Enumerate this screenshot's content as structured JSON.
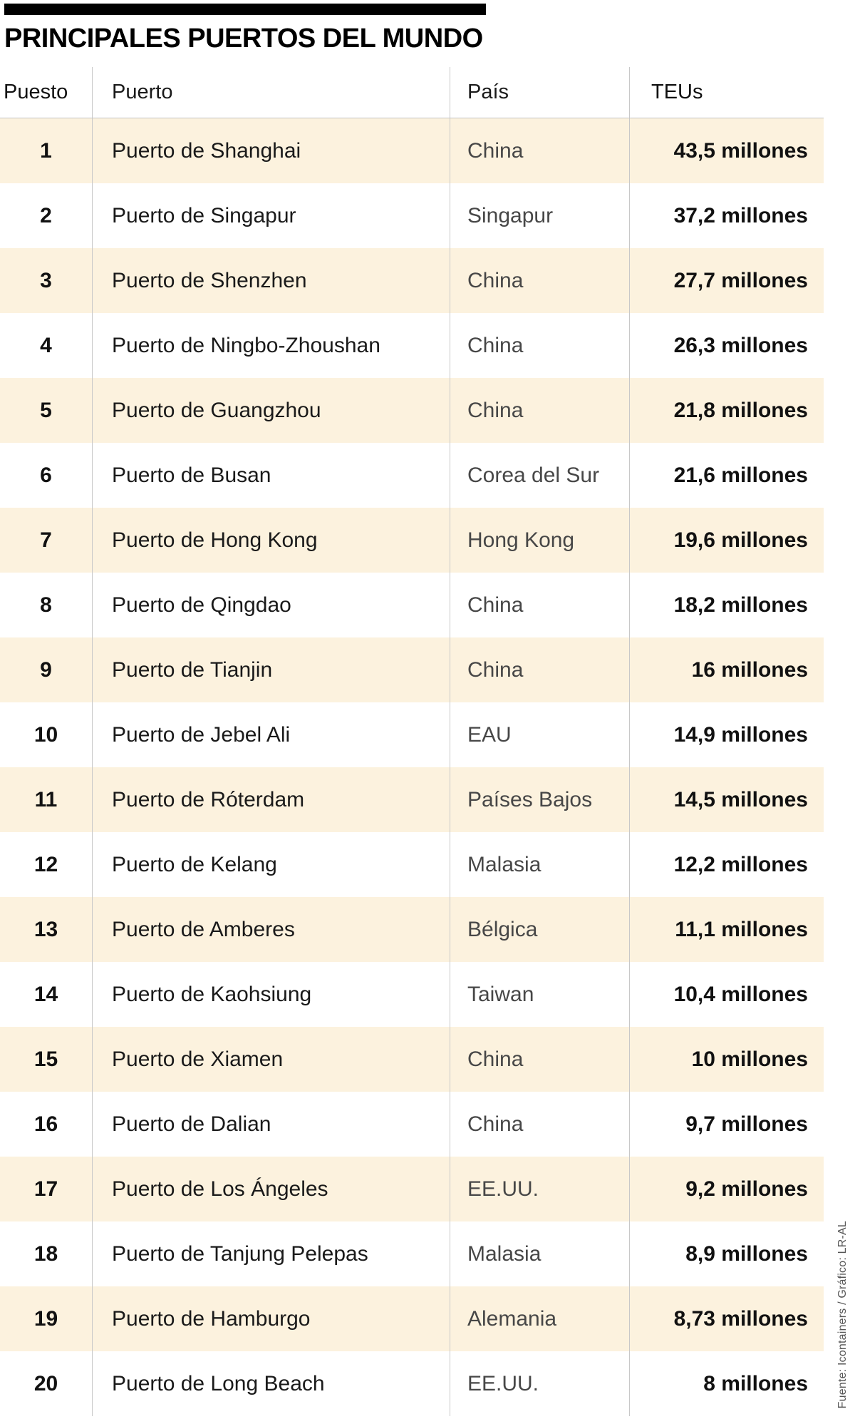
{
  "source_credit": "Fuente: Icontainers / Gráfico: LR-AL",
  "colors": {
    "stripe": "#fcf2de",
    "accent_bar": "#000000",
    "divider": "#c8c8c8"
  },
  "chart_data": {
    "type": "table",
    "title": "PRINCIPALES PUERTOS DEL MUNDO",
    "columns": [
      "Puesto",
      "Puerto",
      "País",
      "TEUs"
    ],
    "rows": [
      [
        "1",
        "Puerto de Shanghai",
        "China",
        "43,5 millones"
      ],
      [
        "2",
        "Puerto de Singapur",
        "Singapur",
        "37,2 millones"
      ],
      [
        "3",
        "Puerto de Shenzhen",
        "China",
        "27,7 millones"
      ],
      [
        "4",
        "Puerto de Ningbo-Zhoushan",
        "China",
        "26,3 millones"
      ],
      [
        "5",
        "Puerto de Guangzhou",
        "China",
        "21,8 millones"
      ],
      [
        "6",
        "Puerto de Busan",
        "Corea del Sur",
        "21,6 millones"
      ],
      [
        "7",
        "Puerto de Hong Kong",
        "Hong Kong",
        "19,6 millones"
      ],
      [
        "8",
        "Puerto de Qingdao",
        "China",
        "18,2 millones"
      ],
      [
        "9",
        "Puerto de Tianjin",
        "China",
        "16 millones"
      ],
      [
        "10",
        "Puerto de Jebel Ali",
        "EAU",
        "14,9 millones"
      ],
      [
        "11",
        "Puerto de Róterdam",
        "Países Bajos",
        "14,5 millones"
      ],
      [
        "12",
        "Puerto de Kelang",
        "Malasia",
        "12,2 millones"
      ],
      [
        "13",
        "Puerto de Amberes",
        "Bélgica",
        "11,1 millones"
      ],
      [
        "14",
        "Puerto de Kaohsiung",
        "Taiwan",
        "10,4 millones"
      ],
      [
        "15",
        "Puerto de Xiamen",
        "China",
        "10 millones"
      ],
      [
        "16",
        "Puerto de Dalian",
        "China",
        "9,7 millones"
      ],
      [
        "17",
        "Puerto de Los Ángeles",
        "EE.UU.",
        "9,2 millones"
      ],
      [
        "18",
        "Puerto de Tanjung Pelepas",
        "Malasia",
        "8,9 millones"
      ],
      [
        "19",
        "Puerto de Hamburgo",
        "Alemania",
        "8,73 millones"
      ],
      [
        "20",
        "Puerto de Long Beach",
        "EE.UU.",
        "8 millones"
      ]
    ],
    "teus_values_millions": [
      43.5,
      37.2,
      27.7,
      26.3,
      21.8,
      21.6,
      19.6,
      18.2,
      16,
      14.9,
      14.5,
      12.2,
      11.1,
      10.4,
      10,
      9.7,
      9.2,
      8.9,
      8.73,
      8
    ],
    "legend_position": "none",
    "grid": "column-dividers"
  }
}
